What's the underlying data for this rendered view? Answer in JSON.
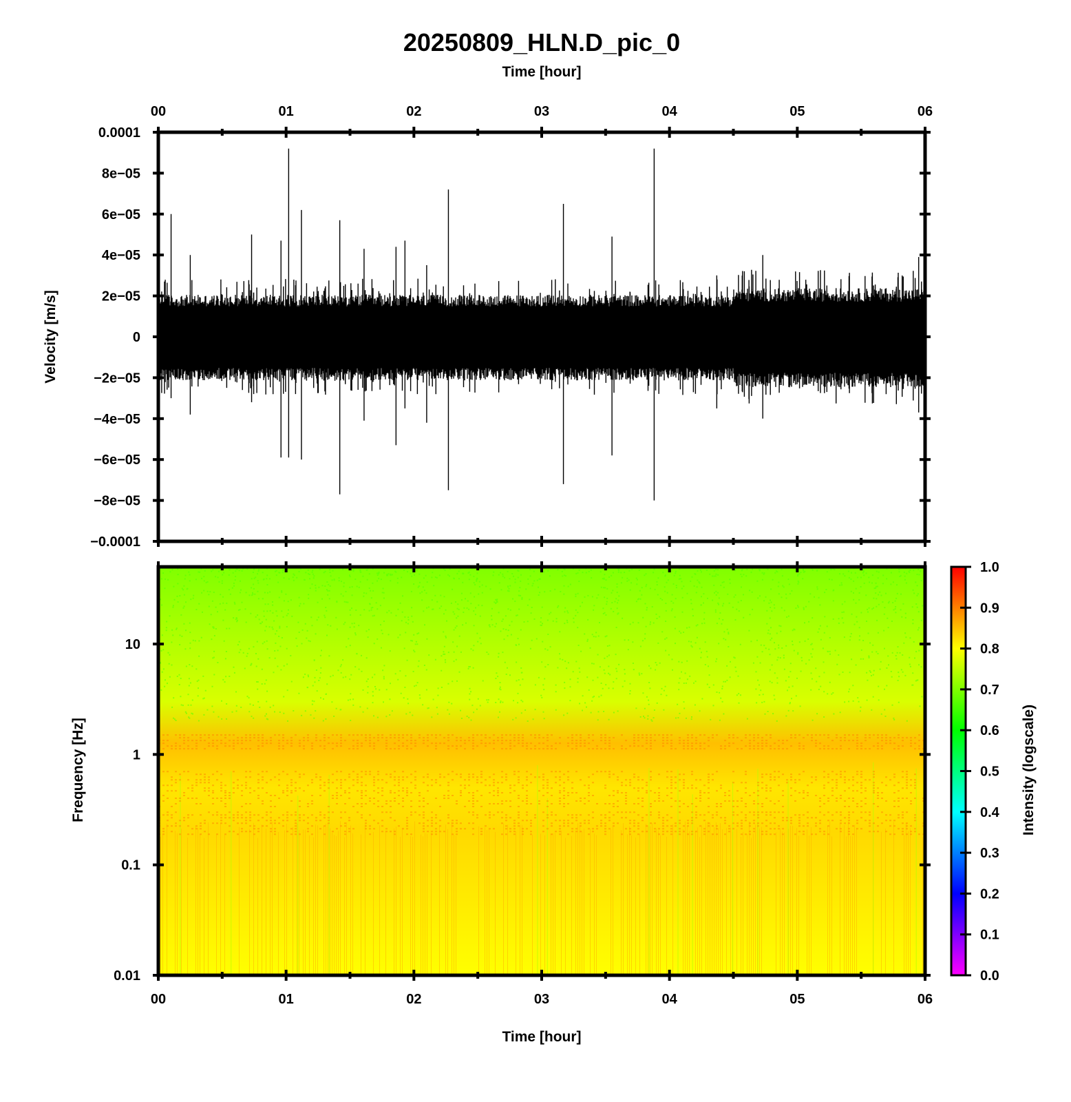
{
  "title": "20250809_HLN.D_pic_0",
  "chart_data": [
    {
      "type": "line",
      "panel": "waveform",
      "xlabel_top": "Time [hour]",
      "ylabel": "Velocity [m/s]",
      "xlim": [
        0,
        6
      ],
      "x_ticks": [
        "00",
        "01",
        "02",
        "03",
        "04",
        "05",
        "06"
      ],
      "ylim": [
        -0.0001,
        0.0001
      ],
      "y_ticks": [
        0.0001,
        8e-05,
        6e-05,
        4e-05,
        2e-05,
        0,
        -2e-05,
        -4e-05,
        -6e-05,
        -8e-05,
        -0.0001
      ],
      "y_tick_labels": [
        "0.0001",
        "8e−05",
        "6e−05",
        "4e−05",
        "2e−05",
        "0",
        "−2e−05",
        "−4e−05",
        "−6e−05",
        "−8e−05",
        "−0.0001"
      ],
      "noise_envelope": [
        {
          "from_hour": 0.0,
          "to_hour": 4.5,
          "amplitude": 1.9e-05
        },
        {
          "from_hour": 4.5,
          "to_hour": 6.0,
          "amplitude": 2.2e-05
        }
      ],
      "spikes": [
        {
          "t": 0.1,
          "max": 6e-05,
          "min": -3e-05
        },
        {
          "t": 0.25,
          "max": 4e-05,
          "min": -3.8e-05
        },
        {
          "t": 0.73,
          "max": 5e-05,
          "min": -3.2e-05
        },
        {
          "t": 0.96,
          "max": 4.7e-05,
          "min": -5.9e-05
        },
        {
          "t": 1.02,
          "max": 9.2e-05,
          "min": -5.9e-05
        },
        {
          "t": 1.12,
          "max": 6.2e-05,
          "min": -6e-05
        },
        {
          "t": 1.42,
          "max": 5.7e-05,
          "min": -7.7e-05
        },
        {
          "t": 1.61,
          "max": 4.3e-05,
          "min": -4.1e-05
        },
        {
          "t": 1.86,
          "max": 4.4e-05,
          "min": -5.3e-05
        },
        {
          "t": 1.93,
          "max": 4.7e-05,
          "min": -3.5e-05
        },
        {
          "t": 2.1,
          "max": 3.5e-05,
          "min": -4.2e-05
        },
        {
          "t": 2.27,
          "max": 7.2e-05,
          "min": -7.5e-05
        },
        {
          "t": 3.17,
          "max": 6.5e-05,
          "min": -7.2e-05
        },
        {
          "t": 3.55,
          "max": 4.9e-05,
          "min": -5.8e-05
        },
        {
          "t": 3.88,
          "max": 9.2e-05,
          "min": -8e-05
        },
        {
          "t": 4.37,
          "max": 3e-05,
          "min": -3.5e-05
        },
        {
          "t": 4.73,
          "max": 4e-05,
          "min": -4e-05
        },
        {
          "t": 5.95,
          "max": 3.9e-05,
          "min": -3.7e-05
        }
      ]
    },
    {
      "type": "heatmap",
      "panel": "spectrogram",
      "xlabel": "Time [hour]",
      "ylabel": "Frequency [Hz]",
      "xlim": [
        0,
        6
      ],
      "x_ticks": [
        "00",
        "01",
        "02",
        "03",
        "04",
        "05",
        "06"
      ],
      "yscale": "log",
      "ylim": [
        0.01,
        50
      ],
      "y_ticks": [
        10,
        1,
        0.1,
        0.01
      ],
      "y_tick_labels": [
        "10",
        "1",
        "0.1",
        "0.01"
      ],
      "colorbar": {
        "label": "Intensity (logscale)",
        "range": [
          0.0,
          1.0
        ],
        "ticks": [
          "1.0",
          "0.9",
          "0.8",
          "0.7",
          "0.6",
          "0.5",
          "0.4",
          "0.3",
          "0.2",
          "0.1",
          "0.0"
        ],
        "colors": [
          "#ff00ff",
          "#0000ff",
          "#00ffff",
          "#00ff00",
          "#ffff00",
          "#ff0000"
        ]
      },
      "intensity_profile": [
        {
          "freq_hz": 50,
          "intensity": 0.7
        },
        {
          "freq_hz": 10,
          "intensity": 0.74
        },
        {
          "freq_hz": 3,
          "intensity": 0.77
        },
        {
          "freq_hz": 1.25,
          "intensity": 0.85
        },
        {
          "freq_hz": 0.5,
          "intensity": 0.82
        },
        {
          "freq_hz": 0.2,
          "intensity": 0.83
        },
        {
          "freq_hz": 0.01,
          "intensity": 0.8
        }
      ]
    }
  ]
}
